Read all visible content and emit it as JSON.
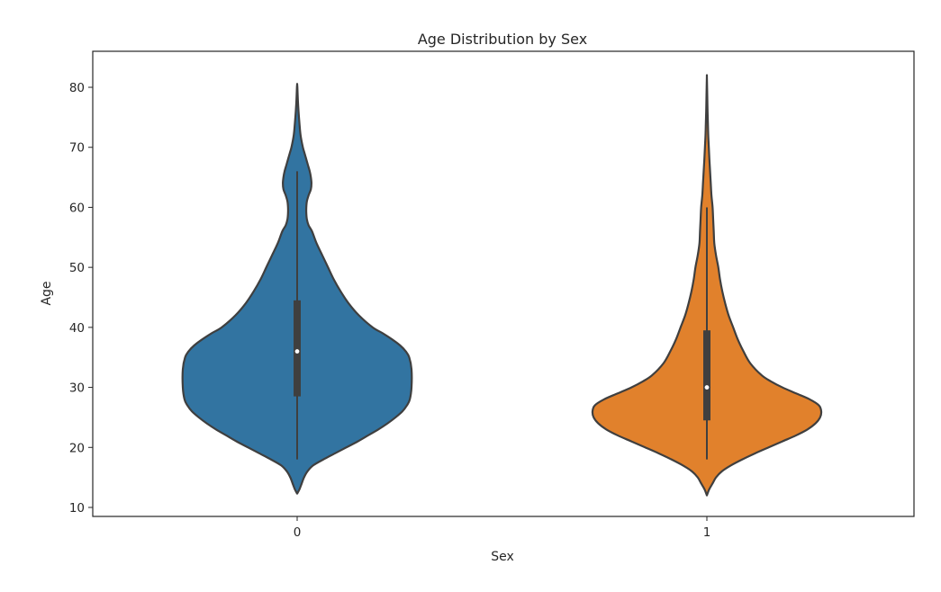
{
  "chart_data": {
    "type": "violin",
    "title": "Age Distribution by Sex",
    "xlabel": "Sex",
    "ylabel": "Age",
    "categories": [
      "0",
      "1"
    ],
    "ylim": [
      8.5,
      86
    ],
    "yticks": [
      10,
      20,
      30,
      40,
      50,
      60,
      70,
      80
    ],
    "grid": false,
    "series": [
      {
        "category": "0",
        "color": "#3274a1",
        "min": 12.3,
        "max": 80.5,
        "box": {
          "whisker_low": 18,
          "q1": 28.5,
          "median": 36,
          "q3": 44.5,
          "whisker_high": 66
        },
        "density": [
          [
            12.3,
            0.0
          ],
          [
            13,
            0.02
          ],
          [
            14,
            0.04
          ],
          [
            15,
            0.06
          ],
          [
            16,
            0.09
          ],
          [
            17,
            0.14
          ],
          [
            18,
            0.23
          ],
          [
            19,
            0.33
          ],
          [
            20,
            0.43
          ],
          [
            21,
            0.53
          ],
          [
            22,
            0.62
          ],
          [
            23,
            0.71
          ],
          [
            24,
            0.79
          ],
          [
            25,
            0.86
          ],
          [
            26,
            0.92
          ],
          [
            27,
            0.96
          ],
          [
            28,
            0.985
          ],
          [
            30,
            1.0
          ],
          [
            33,
            1.0
          ],
          [
            35,
            0.98
          ],
          [
            36,
            0.95
          ],
          [
            37,
            0.9
          ],
          [
            38,
            0.83
          ],
          [
            39,
            0.75
          ],
          [
            40,
            0.66
          ],
          [
            42,
            0.54
          ],
          [
            44,
            0.45
          ],
          [
            46,
            0.38
          ],
          [
            48,
            0.32
          ],
          [
            50,
            0.27
          ],
          [
            52,
            0.22
          ],
          [
            54,
            0.17
          ],
          [
            56,
            0.13
          ],
          [
            57,
            0.1
          ],
          [
            58,
            0.085
          ],
          [
            59,
            0.08
          ],
          [
            60,
            0.08
          ],
          [
            61,
            0.085
          ],
          [
            62,
            0.1
          ],
          [
            63,
            0.12
          ],
          [
            64,
            0.125
          ],
          [
            65,
            0.12
          ],
          [
            66,
            0.11
          ],
          [
            67,
            0.095
          ],
          [
            68,
            0.08
          ],
          [
            69,
            0.065
          ],
          [
            70,
            0.05
          ],
          [
            72,
            0.03
          ],
          [
            74,
            0.02
          ],
          [
            76,
            0.012
          ],
          [
            78,
            0.006
          ],
          [
            80,
            0.002
          ],
          [
            80.5,
            0.0
          ]
        ]
      },
      {
        "category": "1",
        "color": "#e1812c",
        "min": 12,
        "max": 81.8,
        "box": {
          "whisker_low": 18,
          "q1": 24.5,
          "median": 30,
          "q3": 39.5,
          "whisker_high": 60
        },
        "density": [
          [
            12,
            0.0
          ],
          [
            13,
            0.02
          ],
          [
            14,
            0.05
          ],
          [
            15,
            0.08
          ],
          [
            16,
            0.13
          ],
          [
            17,
            0.21
          ],
          [
            18,
            0.31
          ],
          [
            19,
            0.42
          ],
          [
            20,
            0.54
          ],
          [
            21,
            0.66
          ],
          [
            22,
            0.78
          ],
          [
            23,
            0.88
          ],
          [
            24,
            0.95
          ],
          [
            25,
            0.99
          ],
          [
            26,
            1.0
          ],
          [
            27,
            0.98
          ],
          [
            28,
            0.9
          ],
          [
            29,
            0.78
          ],
          [
            30,
            0.66
          ],
          [
            31,
            0.56
          ],
          [
            32,
            0.48
          ],
          [
            34,
            0.38
          ],
          [
            36,
            0.32
          ],
          [
            38,
            0.27
          ],
          [
            40,
            0.23
          ],
          [
            42,
            0.19
          ],
          [
            44,
            0.16
          ],
          [
            46,
            0.135
          ],
          [
            48,
            0.115
          ],
          [
            50,
            0.1
          ],
          [
            52,
            0.08
          ],
          [
            54,
            0.065
          ],
          [
            56,
            0.06
          ],
          [
            58,
            0.055
          ],
          [
            60,
            0.05
          ],
          [
            62,
            0.04
          ],
          [
            64,
            0.034
          ],
          [
            66,
            0.028
          ],
          [
            68,
            0.022
          ],
          [
            70,
            0.017
          ],
          [
            72,
            0.012
          ],
          [
            74,
            0.009
          ],
          [
            76,
            0.006
          ],
          [
            78,
            0.004
          ],
          [
            80,
            0.002
          ],
          [
            81.8,
            0.0
          ]
        ]
      }
    ]
  }
}
